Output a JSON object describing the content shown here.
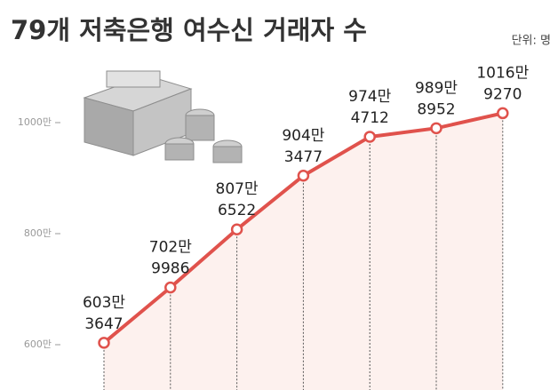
{
  "chart_data": {
    "type": "line",
    "title": "79개 저축은행 여수신 거래자 수",
    "unit_label": "단위: 명",
    "categories": [
      null,
      null,
      null,
      null,
      null,
      null,
      null
    ],
    "values": [
      6033647,
      7029986,
      8076522,
      9043477,
      9744712,
      9898952,
      10169270
    ],
    "value_labels": [
      [
        "603만",
        "3647"
      ],
      [
        "702만",
        "9986"
      ],
      [
        "807만",
        "6522"
      ],
      [
        "904만",
        "3477"
      ],
      [
        "974만",
        "4712"
      ],
      [
        "989만",
        "8952"
      ],
      [
        "1016만",
        "9270"
      ]
    ],
    "color": "#e0524c",
    "ylim": [
      5200000,
      10800000
    ],
    "yticks": [
      {
        "value": 6000000,
        "label": "600만"
      },
      {
        "value": 8000000,
        "label": "800만"
      },
      {
        "value": 10000000,
        "label": "1000만"
      }
    ]
  }
}
